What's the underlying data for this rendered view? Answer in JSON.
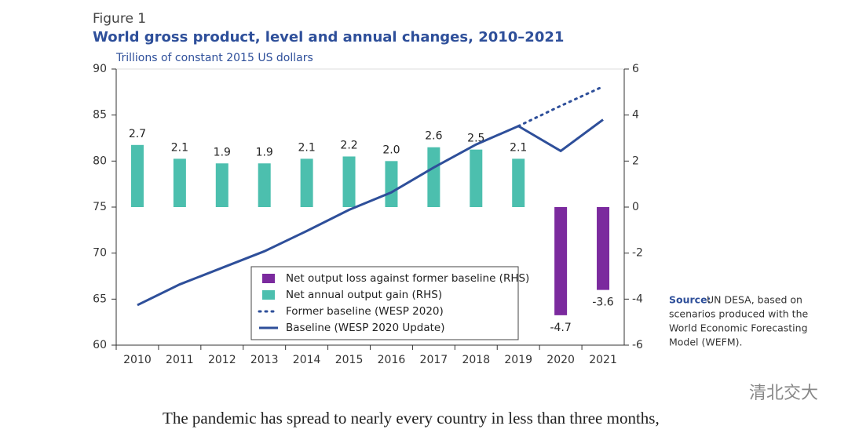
{
  "figure_label": "Figure 1",
  "chart_data": {
    "type": "bar",
    "title": "World gross product, level and annual changes, 2010–2021",
    "y_label": "Trillions of constant 2015 US dollars",
    "categories": [
      "2010",
      "2011",
      "2012",
      "2013",
      "2014",
      "2015",
      "2016",
      "2017",
      "2018",
      "2019",
      "2020",
      "2021"
    ],
    "ylim": [
      60,
      90
    ],
    "yticks": [
      60,
      65,
      70,
      75,
      80,
      85,
      90
    ],
    "y2lim": [
      -6,
      6
    ],
    "y2ticks": [
      -6,
      -4,
      -2,
      0,
      2,
      4,
      6
    ],
    "grid": false,
    "series": [
      {
        "name": "Net output loss against former baseline (RHS)",
        "type": "bar",
        "axis": "y2",
        "color": "#7b2a9e",
        "values": [
          null,
          null,
          null,
          null,
          null,
          null,
          null,
          null,
          null,
          null,
          -4.7,
          -3.6
        ]
      },
      {
        "name": "Net annual output gain (RHS)",
        "type": "bar",
        "axis": "y2",
        "color": "#4cbfae",
        "values": [
          2.7,
          2.1,
          1.9,
          1.9,
          2.1,
          2.2,
          2.0,
          2.6,
          2.5,
          2.1,
          null,
          null
        ],
        "value_labels": [
          "2.7",
          "2.1",
          "1.9",
          "1.9",
          "2.1",
          "2.2",
          "2.0",
          "2.6",
          "2.5",
          "2.1",
          null,
          null
        ]
      },
      {
        "name": "Former baseline (WESP 2020)",
        "type": "line",
        "dashed": true,
        "color": "#2e4f9a",
        "values": [
          null,
          null,
          null,
          null,
          null,
          null,
          null,
          null,
          null,
          83.8,
          86.0,
          88.1
        ]
      },
      {
        "name": "Baseline (WESP 2020 Update)",
        "type": "line",
        "color": "#2e4f9a",
        "values": [
          64.35,
          66.6,
          68.4,
          70.2,
          72.4,
          74.7,
          76.6,
          79.3,
          81.8,
          83.8,
          81.1,
          84.5
        ]
      }
    ]
  },
  "source_label": "Source:",
  "source_lines": [
    "UN DESA, based on",
    "scenarios produced with the",
    "World Economic Forecasting",
    "Model (WEFM)."
  ],
  "watermark": "清北交大",
  "body_text": "The pandemic has spread to nearly every country in less than three months,"
}
